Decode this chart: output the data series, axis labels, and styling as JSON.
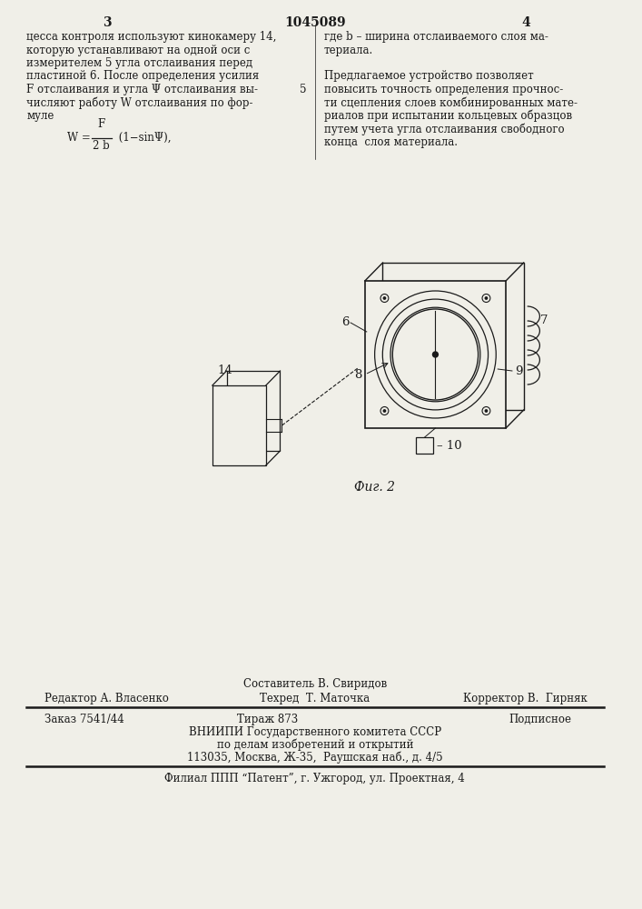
{
  "bg_color": "#f0efe8",
  "text_color": "#1a1a1a",
  "page_num_left": "3",
  "page_num_center": "1045089",
  "page_num_right": "4",
  "col_left_lines": [
    "цесса контроля используют кинокамеру 14,",
    "которую устанавливают на одной оси с",
    "измерителем 5 угла отслаивания перед",
    "пластиной 6. После определения усилия",
    "F отслаивания и угла Ψ отслаивания вы-",
    "числяют работу W отслаивания по фор-",
    "муле"
  ],
  "formula_fraction_top": "F",
  "formula_fraction_bot": "2 b",
  "col_right_lines": [
    "где b – ширина отслаиваемого слоя ма-",
    "териала.",
    "",
    "Предлагаемое устройство позволяет",
    "повысить точность определения прочнос-",
    "ти сцепления слоев комбинированных мате-",
    "риалов при испытании кольцевых образцов",
    "путем учета угла отслаивания свободного",
    "конца  слоя материала."
  ],
  "fig_caption": "Фиг. 2",
  "number_5": "5",
  "footer_last": "Филиал ППП “Патент”, г. Ужгород, ул. Проектная, 4"
}
